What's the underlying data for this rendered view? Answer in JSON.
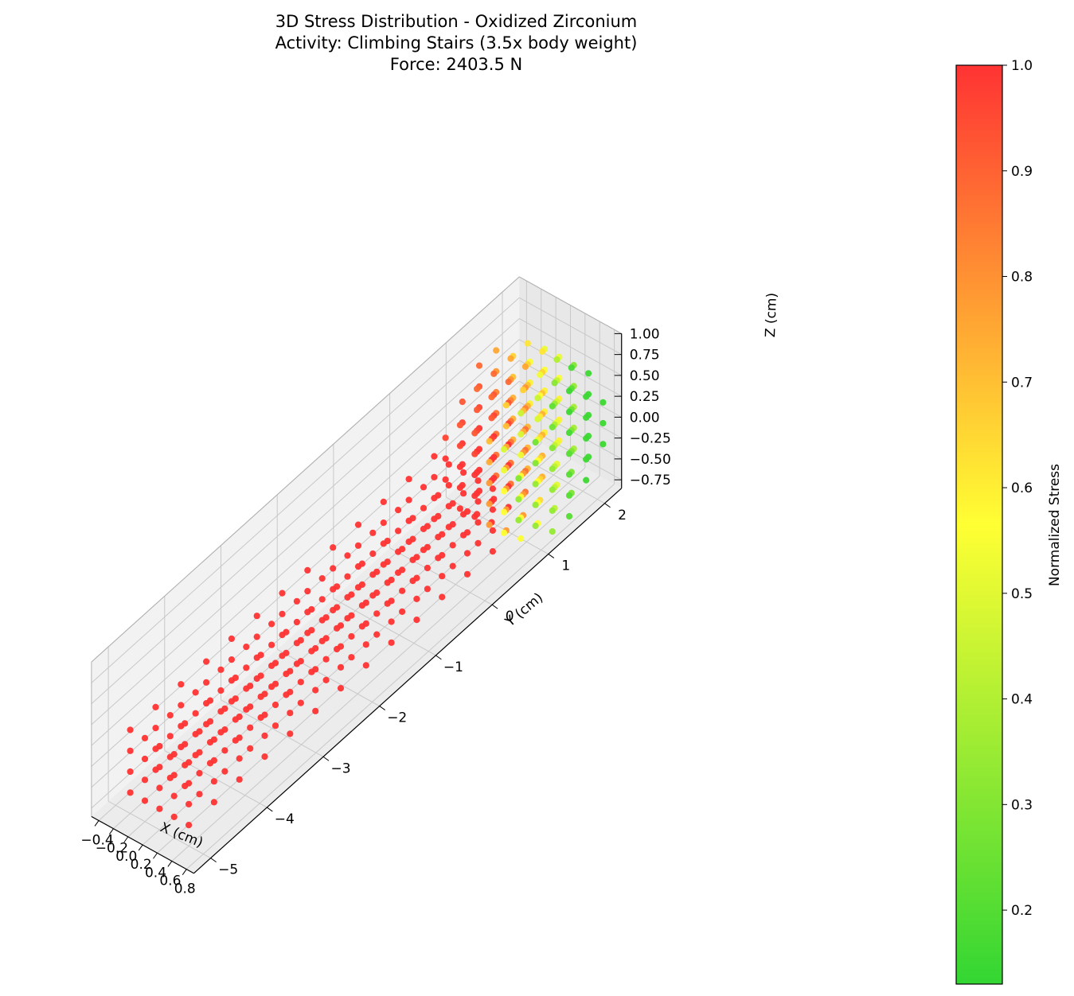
{
  "chart_data": {
    "type": "scatter",
    "projection": "3d",
    "title": [
      "3D Stress Distribution - Oxidized Zirconium",
      "Activity: Climbing Stairs (3.5x body weight)",
      "Force: 2403.5 N"
    ],
    "xlabel": "X (cm)",
    "ylabel": "Y (cm)",
    "zlabel": "Z (cm)",
    "colorbar_label": "Normalized Stress",
    "x_ticks": [
      "−0.4",
      "−0.2",
      "0.0",
      "0.2",
      "0.4",
      "0.6",
      "0.8"
    ],
    "y_ticks": [
      "−5",
      "−4",
      "−3",
      "−2",
      "−1",
      "0",
      "1",
      "2"
    ],
    "z_ticks": [
      "−0.75",
      "−0.50",
      "−0.25",
      "0.00",
      "0.25",
      "0.50",
      "0.75",
      "1.00"
    ],
    "colorbar_ticks": [
      "0.2",
      "0.3",
      "0.4",
      "0.5",
      "0.6",
      "0.7",
      "0.8",
      "0.9",
      "1.0"
    ],
    "xlim": [
      -0.5,
      0.9
    ],
    "ylim": [
      -5.3,
      2.3
    ],
    "zlim": [
      -0.85,
      1.0
    ],
    "clim": [
      0.13,
      1.0
    ],
    "colormap": [
      "#33d633",
      "#ffff33",
      "#ff3333"
    ],
    "grid": true,
    "series": [
      {
        "stem_x": [
          -0.2,
          0.0,
          0.2,
          0.4,
          0.6
        ],
        "stem_y": [
          -5.0,
          -4.55,
          -4.1,
          -3.65,
          -3.2,
          -2.75,
          -2.3,
          -1.85,
          -1.4,
          -0.95,
          -0.5,
          -0.05,
          0.4
        ],
        "stem_z": [
          -0.6,
          -0.35,
          -0.1,
          0.15
        ],
        "stem_stress": 1.0
      },
      {
        "head_x": [
          -0.2,
          0.0,
          0.2,
          0.4,
          0.6,
          0.8
        ],
        "head_y": [
          0.6,
          0.9,
          1.2,
          1.5,
          1.8,
          2.1
        ],
        "head_z": [
          -0.75,
          -0.5,
          -0.25,
          0.0,
          0.25,
          0.5,
          0.75
        ],
        "head_center": [
          0.3,
          1.35,
          0.0
        ],
        "head_radius": 0.8
      }
    ]
  }
}
